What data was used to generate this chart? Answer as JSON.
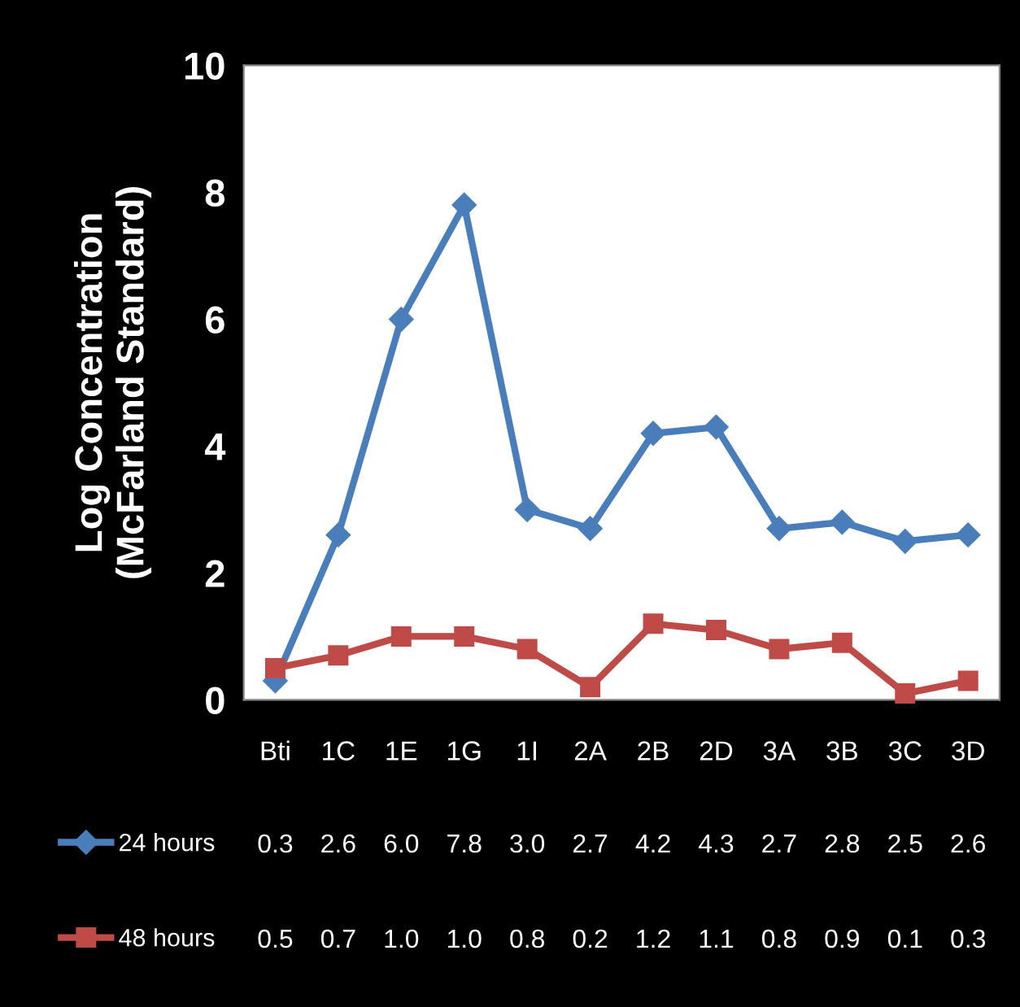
{
  "chart_data": {
    "type": "line",
    "ylabel": "Log Concentration\n(McFarland Standard)",
    "categories": [
      "Bti",
      "1C",
      "1E",
      "1G",
      "1I",
      "2A",
      "2B",
      "2D",
      "3A",
      "3B",
      "3C",
      "3D"
    ],
    "series": [
      {
        "name": "24 hours",
        "color": "#4a7ebb",
        "marker": "diamond",
        "values": [
          0.3,
          2.6,
          6.0,
          7.8,
          3.0,
          2.7,
          4.2,
          4.3,
          2.7,
          2.8,
          2.5,
          2.6
        ],
        "value_labels": [
          "0.3",
          "2.6",
          "6.0",
          "7.8",
          "3.0",
          "2.7",
          "4.2",
          "4.3",
          "2.7",
          "2.8",
          "2.5",
          "2.6"
        ]
      },
      {
        "name": "48 hours",
        "color": "#be4b48",
        "marker": "square",
        "values": [
          0.5,
          0.7,
          1.0,
          1.0,
          0.8,
          0.2,
          1.2,
          1.1,
          0.8,
          0.9,
          0.1,
          0.3
        ],
        "value_labels": [
          "0.5",
          "0.7",
          "1.0",
          "1.0",
          "0.8",
          "0.2",
          "1.2",
          "1.1",
          "0.8",
          "0.9",
          "0.1",
          "0.3"
        ]
      }
    ],
    "ylim": [
      0,
      10
    ],
    "yticks": [
      0,
      2,
      4,
      6,
      8,
      10
    ],
    "grid": false,
    "legend": "bottom",
    "line_style": "solid"
  }
}
